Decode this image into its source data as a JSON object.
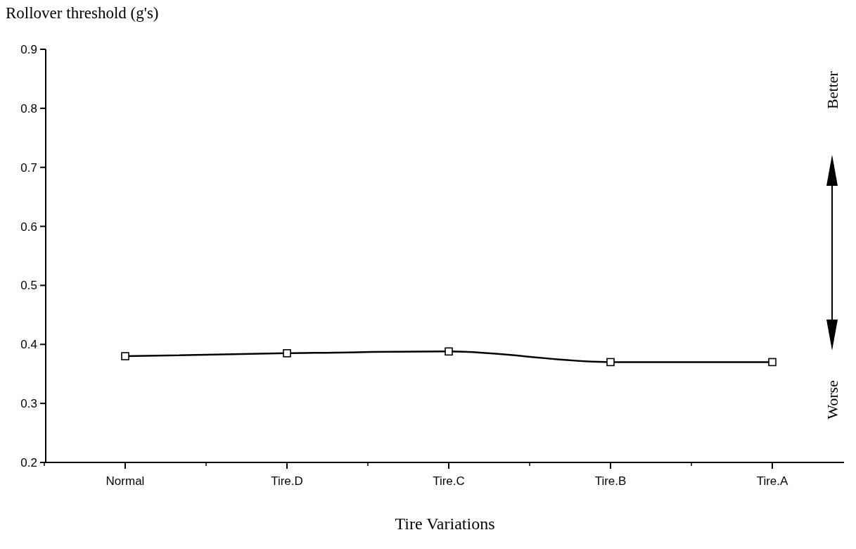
{
  "chart_data": {
    "type": "line",
    "xlabel": "Tire Variations",
    "ylabel": "Rollover threshold (g's)",
    "categories": [
      "Normal",
      "Tire.D",
      "Tire.C",
      "Tire.B",
      "Tire.A"
    ],
    "series": [
      {
        "color": "#000000",
        "values": [
          0.38,
          0.385,
          0.388,
          0.37,
          0.37
        ]
      }
    ],
    "ylim": [
      0.2,
      0.9
    ],
    "yticks": [
      0.2,
      0.3,
      0.4,
      0.5,
      0.6,
      0.7,
      0.8,
      0.9
    ],
    "marker": "square",
    "line_style": "solid",
    "grid": false,
    "annotations": [
      "Better",
      "Worse"
    ]
  }
}
